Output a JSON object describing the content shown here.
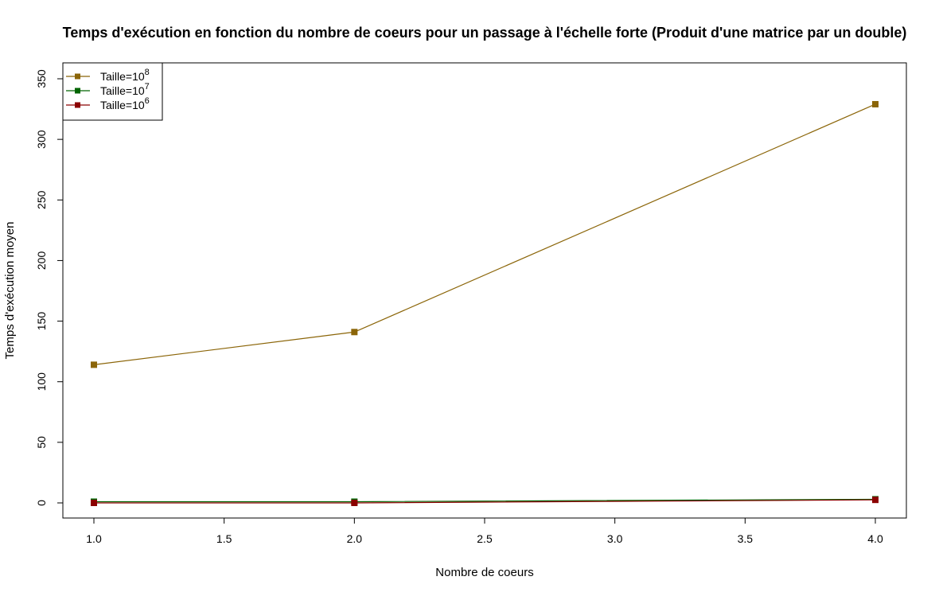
{
  "chart_data": {
    "type": "line",
    "title": "Temps d'exécution en fonction du nombre de coeurs pour un passage à l'échelle forte (Produit d'une matrice par un double)",
    "xlabel": "Nombre de coeurs",
    "ylabel": "Temps d'exécution moyen",
    "xlim": [
      1.0,
      4.0
    ],
    "ylim": [
      0,
      350
    ],
    "x_ticks": [
      "1.0",
      "1.5",
      "2.0",
      "2.5",
      "3.0",
      "3.5",
      "4.0"
    ],
    "y_ticks": [
      "0",
      "50",
      "100",
      "150",
      "200",
      "250",
      "300",
      "350"
    ],
    "x": [
      1,
      2,
      4
    ],
    "legend_position": "top-left",
    "grid": false,
    "series": [
      {
        "name": "Taille=10",
        "exponent": "8",
        "color": "#8B6508",
        "values": [
          114,
          141,
          329
        ]
      },
      {
        "name": "Taille=10",
        "exponent": "7",
        "color": "#006400",
        "values": [
          1,
          1,
          3
        ]
      },
      {
        "name": "Taille=10",
        "exponent": "6",
        "color": "#8B0000",
        "values": [
          0,
          0,
          2.5
        ]
      }
    ]
  }
}
